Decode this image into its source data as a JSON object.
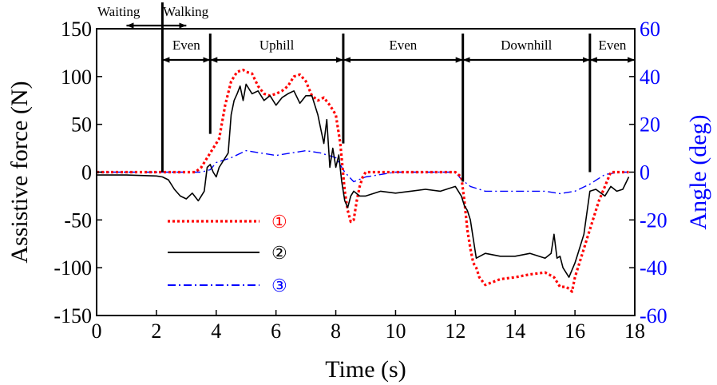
{
  "colors": {
    "series1": "#ff0000",
    "series2": "#000000",
    "series3": "#0000ff",
    "right_axis": "#0000ff",
    "axes": "#000000"
  },
  "chart_data": {
    "type": "line",
    "xlabel": "Time (s)",
    "ylabel_left": "Assistive force (N)",
    "ylabel_right": "Angle (deg)",
    "xlim": [
      0,
      18
    ],
    "ylim_left": [
      -150,
      150
    ],
    "ylim_right": [
      -60,
      60
    ],
    "xticks": [
      "0",
      "2",
      "4",
      "6",
      "8",
      "10",
      "12",
      "14",
      "16",
      "18"
    ],
    "yticks_left": [
      "-150",
      "-100",
      "-50",
      "0",
      "50",
      "100",
      "150"
    ],
    "yticks_right": [
      "-60",
      "-40",
      "-20",
      "0",
      "20",
      "40",
      "60"
    ],
    "grid": false,
    "legend": [
      "①",
      "②",
      "③"
    ],
    "phase_markers": [
      {
        "label": "Waiting",
        "x_start": 1.0,
        "x_end": 2.2,
        "arrow": "left"
      },
      {
        "label": "Walking",
        "x_start": 2.2,
        "x_end": 3.8,
        "arrow": "right"
      },
      {
        "label": "Even",
        "x_start": 2.2,
        "x_end": 3.8,
        "arrow": "both"
      },
      {
        "label": "Uphill",
        "x_start": 3.8,
        "x_end": 8.25,
        "arrow": "both"
      },
      {
        "label": "Even",
        "x_start": 8.25,
        "x_end": 12.25,
        "arrow": "both"
      },
      {
        "label": "Downhill",
        "x_start": 12.25,
        "x_end": 16.5,
        "arrow": "both"
      },
      {
        "label": "Even",
        "x_start": 16.5,
        "x_end": 18,
        "arrow": "both"
      }
    ],
    "phase_boundaries": [
      {
        "x": 2.2,
        "y_from": 0,
        "y_to": 160
      },
      {
        "x": 3.8,
        "y_from": 40,
        "y_to": 145
      },
      {
        "x": 8.25,
        "y_from": 30,
        "y_to": 145
      },
      {
        "x": 12.25,
        "y_from": -10,
        "y_to": 145
      },
      {
        "x": 16.5,
        "y_from": 0,
        "y_to": 145
      }
    ],
    "series": [
      {
        "key": "1",
        "axis": "left",
        "style": "dotted",
        "x": [
          0,
          1.0,
          2.0,
          3.3,
          3.5,
          3.7,
          3.9,
          4.1,
          4.3,
          4.5,
          4.7,
          4.9,
          5.0,
          5.2,
          5.4,
          5.6,
          5.8,
          6.0,
          6.2,
          6.4,
          6.6,
          6.8,
          7.0,
          7.2,
          7.4,
          7.6,
          7.8,
          8.0,
          8.15,
          8.3,
          8.4,
          8.5,
          8.6,
          8.7,
          8.8,
          8.9,
          9.0,
          10.0,
          11.0,
          12.0,
          12.2,
          12.3,
          12.4,
          12.5,
          12.6,
          12.7,
          12.8,
          13.0,
          13.5,
          14.0,
          14.5,
          15.0,
          15.3,
          15.5,
          15.7,
          15.8,
          15.9,
          16.0,
          16.2,
          16.5,
          16.8,
          17.0,
          17.2,
          17.4,
          17.8
        ],
        "values": [
          0,
          0,
          0,
          0,
          5,
          15,
          25,
          35,
          70,
          95,
          105,
          107,
          105,
          103,
          90,
          82,
          80,
          82,
          85,
          90,
          100,
          102,
          95,
          80,
          75,
          78,
          70,
          60,
          30,
          -20,
          -40,
          -52,
          -50,
          -30,
          -15,
          -5,
          0,
          0,
          0,
          0,
          -5,
          -30,
          -60,
          -80,
          -95,
          -100,
          -110,
          -118,
          -112,
          -110,
          -107,
          -105,
          -110,
          -120,
          -120,
          -122,
          -125,
          -110,
          -90,
          -60,
          -30,
          -15,
          0,
          0,
          0
        ]
      },
      {
        "key": "2",
        "axis": "left",
        "style": "solid",
        "x": [
          0,
          1.0,
          2.0,
          2.2,
          2.4,
          2.6,
          2.8,
          3.0,
          3.2,
          3.4,
          3.5,
          3.6,
          3.7,
          3.8,
          3.9,
          4.0,
          4.1,
          4.2,
          4.4,
          4.5,
          4.6,
          4.7,
          4.8,
          4.9,
          5.0,
          5.2,
          5.4,
          5.6,
          5.8,
          6.0,
          6.2,
          6.4,
          6.6,
          6.8,
          7.0,
          7.2,
          7.4,
          7.5,
          7.6,
          7.7,
          7.8,
          7.9,
          8.0,
          8.1,
          8.2,
          8.3,
          8.4,
          8.5,
          8.6,
          8.8,
          9.0,
          9.5,
          10.0,
          10.5,
          11.0,
          11.5,
          12.0,
          12.2,
          12.3,
          12.4,
          12.5,
          12.6,
          12.7,
          13.0,
          13.5,
          14.0,
          14.5,
          15.0,
          15.2,
          15.3,
          15.4,
          15.5,
          15.6,
          15.8,
          16.0,
          16.1,
          16.3,
          16.5,
          16.7,
          17.0,
          17.2,
          17.4,
          17.6,
          17.8
        ],
        "values": [
          -3,
          -3,
          -4,
          -5,
          -8,
          -18,
          -25,
          -28,
          -22,
          -30,
          -25,
          -20,
          5,
          8,
          0,
          -5,
          5,
          10,
          20,
          60,
          75,
          82,
          90,
          75,
          92,
          82,
          85,
          75,
          80,
          70,
          78,
          82,
          85,
          72,
          80,
          80,
          60,
          45,
          30,
          55,
          5,
          25,
          5,
          18,
          -10,
          -30,
          -37,
          -25,
          -20,
          -25,
          -25,
          -20,
          -22,
          -20,
          -18,
          -20,
          -15,
          -25,
          -35,
          -40,
          -50,
          -70,
          -90,
          -85,
          -88,
          -88,
          -85,
          -90,
          -85,
          -65,
          -90,
          -88,
          -100,
          -110,
          -95,
          -85,
          -65,
          -20,
          -18,
          -25,
          -15,
          -20,
          -18,
          -5
        ]
      },
      {
        "key": "3",
        "axis": "right",
        "style": "dashdot",
        "x": [
          0,
          1.0,
          2.0,
          3.0,
          3.5,
          3.8,
          4.0,
          4.5,
          5.0,
          5.5,
          6.0,
          6.5,
          7.0,
          7.5,
          8.0,
          8.3,
          8.6,
          9.0,
          10.0,
          11.0,
          12.0,
          12.2,
          12.5,
          13.0,
          14.0,
          15.0,
          15.5,
          16.0,
          16.5,
          17.0,
          17.5,
          17.8
        ],
        "values": [
          0,
          0,
          0,
          0,
          0,
          1,
          4,
          6,
          9,
          8,
          7,
          8,
          9,
          8,
          6,
          0,
          -4,
          -2,
          0,
          0,
          0,
          -3,
          -6,
          -8,
          -8,
          -8,
          -9,
          -8,
          -5,
          -1,
          0,
          0
        ]
      }
    ]
  }
}
